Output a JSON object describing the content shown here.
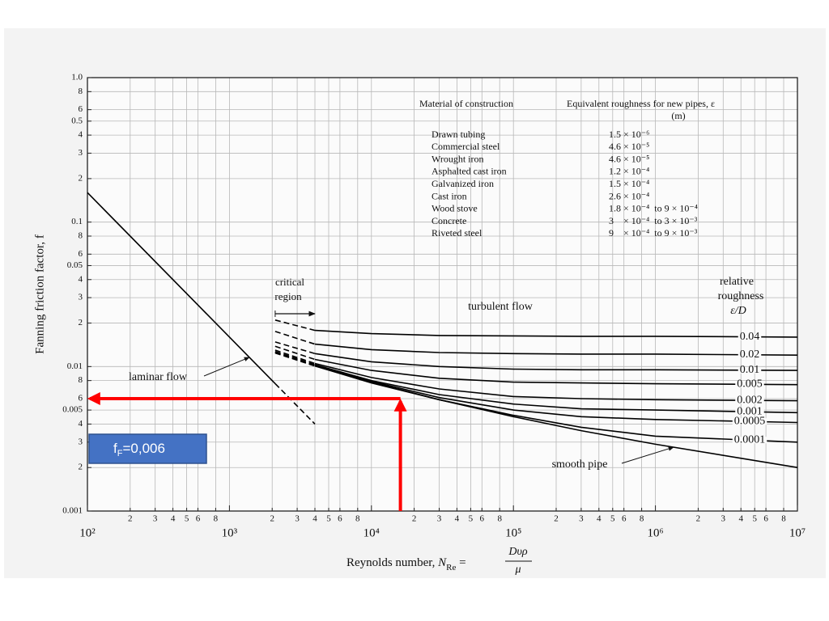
{
  "chart_data": {
    "type": "line",
    "y_label": "Fanning friction factor, f",
    "x_label": {
      "text": "Reynolds number, ",
      "symbol": "N",
      "subscript": "Re",
      "equals": " = ",
      "numerator": "Dυρ",
      "denominator": "μ"
    },
    "xscale": "log",
    "yscale": "log",
    "grid": true,
    "xlim": [
      100,
      10000000
    ],
    "ylim": [
      0.001,
      1
    ],
    "xticks": [
      {
        "value": 100,
        "label": "10²"
      },
      {
        "value": 200,
        "label": "2"
      },
      {
        "value": 300,
        "label": "3"
      },
      {
        "value": 400,
        "label": "4"
      },
      {
        "value": 500,
        "label": "5"
      },
      {
        "value": 600,
        "label": "6"
      },
      {
        "value": 800,
        "label": "8"
      },
      {
        "value": 1000,
        "label": "10³"
      },
      {
        "value": 2000,
        "label": "2"
      },
      {
        "value": 3000,
        "label": "3"
      },
      {
        "value": 4000,
        "label": "4"
      },
      {
        "value": 5000,
        "label": "5"
      },
      {
        "value": 6000,
        "label": "6"
      },
      {
        "value": 8000,
        "label": "8"
      },
      {
        "value": 10000,
        "label": "10⁴"
      },
      {
        "value": 20000,
        "label": "2"
      },
      {
        "value": 30000,
        "label": "3"
      },
      {
        "value": 40000,
        "label": "4"
      },
      {
        "value": 50000,
        "label": "5"
      },
      {
        "value": 60000,
        "label": "6"
      },
      {
        "value": 80000,
        "label": "8"
      },
      {
        "value": 100000,
        "label": "10⁵"
      },
      {
        "value": 200000,
        "label": "2"
      },
      {
        "value": 300000,
        "label": "3"
      },
      {
        "value": 400000,
        "label": "4"
      },
      {
        "value": 500000,
        "label": "5"
      },
      {
        "value": 600000,
        "label": "6"
      },
      {
        "value": 800000,
        "label": "8"
      },
      {
        "value": 1000000,
        "label": "10⁶"
      },
      {
        "value": 2000000,
        "label": "2"
      },
      {
        "value": 3000000,
        "label": "3"
      },
      {
        "value": 4000000,
        "label": "4"
      },
      {
        "value": 5000000,
        "label": "5"
      },
      {
        "value": 6000000,
        "label": "6"
      },
      {
        "value": 8000000,
        "label": "8"
      },
      {
        "value": 10000000,
        "label": "10⁷"
      }
    ],
    "yticks": [
      {
        "value": 1,
        "label": "1.0"
      },
      {
        "value": 0.8,
        "label": "8"
      },
      {
        "value": 0.6,
        "label": "6"
      },
      0.5,
      {
        "value": 0.4,
        "label": "4"
      },
      {
        "value": 0.3,
        "label": "3"
      },
      {
        "value": 0.2,
        "label": "2"
      },
      0.1,
      {
        "value": 0.08,
        "label": "8"
      },
      {
        "value": 0.06,
        "label": "6"
      },
      0.05,
      {
        "value": 0.04,
        "label": "4"
      },
      {
        "value": 0.03,
        "label": "3"
      },
      {
        "value": 0.02,
        "label": "2"
      },
      0.01,
      {
        "value": 0.008,
        "label": "8"
      },
      {
        "value": 0.006,
        "label": "6"
      },
      0.005,
      {
        "value": 0.004,
        "label": "4"
      },
      {
        "value": 0.003,
        "label": "3"
      },
      {
        "value": 0.002,
        "label": "2"
      },
      0.001
    ],
    "series": [
      {
        "name": "laminar flow",
        "color": "#000000",
        "x": [
          100,
          2100,
          4000
        ],
        "values": [
          0.16,
          0.00762,
          0.004
        ]
      },
      {
        "name": "smooth pipe",
        "color": "#000000",
        "x": [
          2100,
          4000,
          10000,
          30000,
          100000,
          300000,
          1000000,
          10000000
        ],
        "values": [
          0.0124,
          0.0101,
          0.0077,
          0.0059,
          0.0045,
          0.0036,
          0.0029,
          0.002
        ]
      },
      {
        "name": "0.04",
        "color": "#000000",
        "x": [
          2100,
          4000,
          10000,
          30000,
          100000,
          300000,
          1000000,
          10000000
        ],
        "values": [
          0.021,
          0.0178,
          0.0169,
          0.0164,
          0.0163,
          0.0162,
          0.0162,
          0.016
        ]
      },
      {
        "name": "0.02",
        "color": "#000000",
        "x": [
          2100,
          4000,
          10000,
          30000,
          100000,
          300000,
          1000000,
          10000000
        ],
        "values": [
          0.0175,
          0.0143,
          0.0131,
          0.0125,
          0.0123,
          0.0122,
          0.0122,
          0.012
        ]
      },
      {
        "name": "0.01",
        "color": "#000000",
        "x": [
          2100,
          4000,
          10000,
          30000,
          100000,
          300000,
          1000000,
          10000000
        ],
        "values": [
          0.0148,
          0.0123,
          0.0108,
          0.01,
          0.0096,
          0.0095,
          0.0095,
          0.0094
        ]
      },
      {
        "name": "0.005",
        "color": "#000000",
        "x": [
          2100,
          4000,
          10000,
          30000,
          100000,
          300000,
          1000000,
          10000000
        ],
        "values": [
          0.0138,
          0.0112,
          0.0094,
          0.0083,
          0.0078,
          0.0077,
          0.0076,
          0.0075
        ]
      },
      {
        "name": "0.002",
        "color": "#000000",
        "x": [
          2100,
          4000,
          10000,
          30000,
          100000,
          300000,
          1000000,
          10000000
        ],
        "values": [
          0.013,
          0.0105,
          0.0084,
          0.007,
          0.0062,
          0.006,
          0.0059,
          0.0058
        ]
      },
      {
        "name": "0.001",
        "color": "#000000",
        "x": [
          2100,
          4000,
          10000,
          30000,
          100000,
          300000,
          1000000,
          10000000
        ],
        "values": [
          0.0127,
          0.0103,
          0.008,
          0.0064,
          0.0055,
          0.0051,
          0.005,
          0.0048
        ]
      },
      {
        "name": "0.0005",
        "color": "#000000",
        "x": [
          2100,
          4000,
          10000,
          30000,
          100000,
          300000,
          1000000,
          10000000
        ],
        "values": [
          0.0126,
          0.0102,
          0.0079,
          0.0061,
          0.005,
          0.0045,
          0.0043,
          0.0041
        ]
      },
      {
        "name": "0.0001",
        "color": "#000000",
        "x": [
          2100,
          4000,
          10000,
          30000,
          100000,
          300000,
          1000000,
          10000000
        ],
        "values": [
          0.0125,
          0.0101,
          0.0078,
          0.0059,
          0.0046,
          0.0038,
          0.0033,
          0.003
        ]
      }
    ],
    "annotations": {
      "critical_region": {
        "text": [
          "critical",
          "region"
        ],
        "x": [
          2100,
          4000
        ]
      },
      "turbulent_flow": "turbulent flow",
      "relative_roughness": [
        "relative",
        "roughness",
        "ε/D"
      ]
    },
    "table": {
      "headers": [
        "Material of construction",
        [
          "Equivalent roughness for new pipes, ε",
          "(m)"
        ]
      ],
      "rows": [
        [
          "Drawn tubing",
          "1.5 × 10⁻⁶"
        ],
        [
          "Commercial steel",
          "4.6 × 10⁻⁵"
        ],
        [
          "Wrought iron",
          "4.6 × 10⁻⁵"
        ],
        [
          "Asphalted cast iron",
          "1.2 × 10⁻⁴"
        ],
        [
          "Galvanized iron",
          "1.5 × 10⁻⁴"
        ],
        [
          "Cast iron",
          "2.6 × 10⁻⁴"
        ],
        [
          "Wood stove",
          "1.8 × 10⁻⁴  to 9 × 10⁻⁴"
        ],
        [
          "Concrete",
          "3    × 10⁻⁴  to 3 × 10⁻³"
        ],
        [
          "Riveted steel",
          "9    × 10⁻⁴  to 9 × 10⁻³"
        ]
      ]
    },
    "reading": {
      "x": 16000,
      "y": 0.006,
      "color": "#ff0000",
      "box_color": "#4472c4",
      "label": {
        "symbol": "f",
        "subscript": "F",
        "text": "=0,006"
      }
    }
  }
}
